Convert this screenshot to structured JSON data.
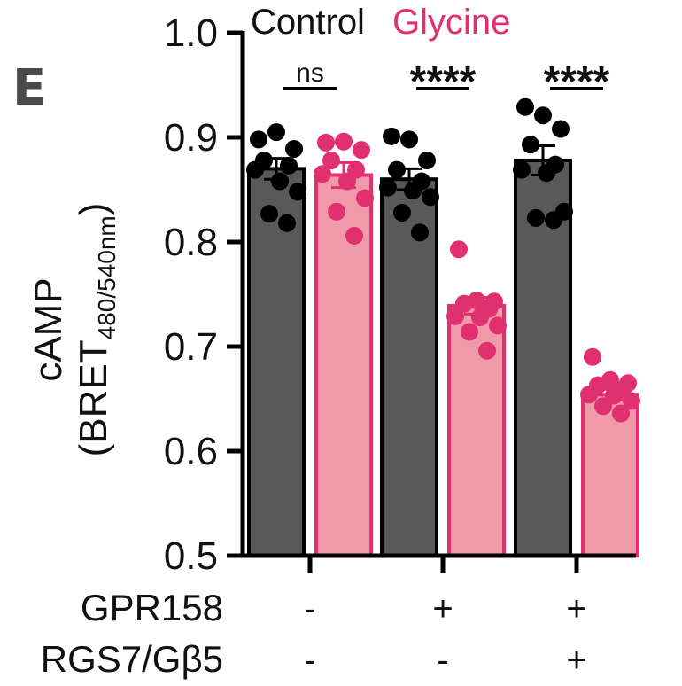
{
  "panel_label": "E",
  "chart_data": {
    "type": "bar",
    "ylabel_line1": "cAMP",
    "ylabel_line2_main": "(BRET",
    "ylabel_line2_sub": "480/540nm",
    "ylabel_line2_end": ")",
    "ylim": [
      0.5,
      1.0
    ],
    "yticks": [
      "0.5",
      "0.6",
      "0.7",
      "0.8",
      "0.9",
      "1.0"
    ],
    "legend": {
      "placement": "top",
      "entries": [
        {
          "name": "Control",
          "color": "#111111"
        },
        {
          "name": "Glycine",
          "color": "#e0306f"
        }
      ]
    },
    "row_labels": [
      {
        "name": "GPR158",
        "values": [
          "-",
          "+",
          "+"
        ]
      },
      {
        "name": "RGS7/Gβ5",
        "values": [
          "-",
          "-",
          "+"
        ]
      }
    ],
    "series": [
      {
        "name": "Control",
        "bar_color": "#595959",
        "point_color": "#000000",
        "values": [
          0.87,
          0.86,
          0.878
        ],
        "sem": [
          0.01,
          0.01,
          0.014
        ],
        "points": [
          [
            0.898,
            0.905,
            0.889,
            0.878,
            0.873,
            0.869,
            0.858,
            0.848,
            0.827,
            0.818
          ],
          [
            0.901,
            0.898,
            0.878,
            0.869,
            0.858,
            0.852,
            0.849,
            0.843,
            0.828,
            0.809
          ],
          [
            0.929,
            0.921,
            0.908,
            0.893,
            0.874,
            0.869,
            0.866,
            0.829,
            0.823,
            0.821
          ]
        ]
      },
      {
        "name": "Glycine",
        "bar_color": "#f099a8",
        "point_color": "#e0306f",
        "values": [
          0.864,
          0.739,
          0.654
        ],
        "sem": [
          0.012,
          0.008,
          0.005
        ],
        "points": [
          [
            0.895,
            0.896,
            0.888,
            0.878,
            0.869,
            0.865,
            0.858,
            0.842,
            0.829,
            0.806
          ],
          [
            0.793,
            0.744,
            0.743,
            0.741,
            0.736,
            0.729,
            0.728,
            0.72,
            0.714,
            0.696
          ],
          [
            0.69,
            0.668,
            0.665,
            0.663,
            0.659,
            0.654,
            0.653,
            0.648,
            0.643,
            0.636
          ]
        ]
      }
    ],
    "significance": [
      "ns",
      "****",
      "****"
    ]
  }
}
